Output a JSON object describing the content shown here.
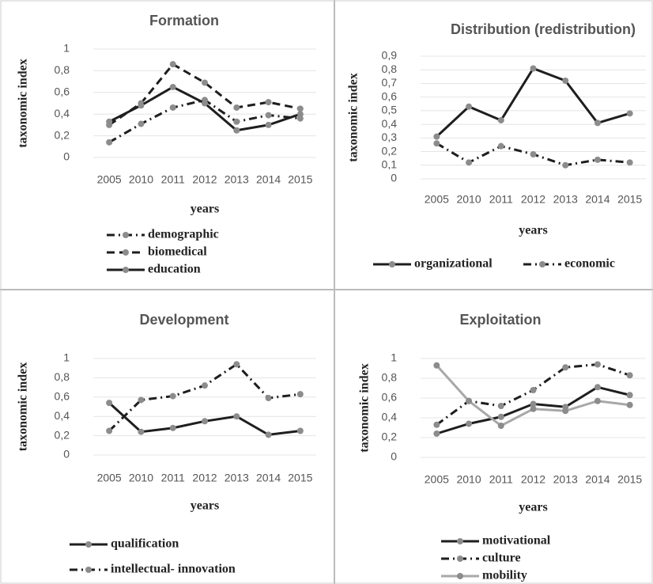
{
  "chart_data": [
    {
      "type": "line",
      "title": "Formation",
      "ylabel": "taxonomic index",
      "xlabel": "years",
      "categories": [
        "2005",
        "2010",
        "2011",
        "2012",
        "2013",
        "2014",
        "2015"
      ],
      "ylim": [
        0,
        1
      ],
      "yticks": [
        0,
        {
          "value": 0.2,
          "label": "0,2"
        },
        {
          "value": 0.4,
          "label": "0,4"
        },
        {
          "value": 0.6,
          "label": "0,6"
        },
        {
          "value": 0.8,
          "label": "0,8"
        },
        1
      ],
      "grid": true,
      "legend": "bottom",
      "series": [
        {
          "name": "demographic",
          "color": "#1e1e1e",
          "dash": "dashdot",
          "values": [
            0.14,
            0.31,
            0.46,
            0.53,
            0.33,
            0.39,
            0.36
          ]
        },
        {
          "name": "biomedical",
          "color": "#1e1e1e",
          "dash": "dashed",
          "values": [
            0.3,
            0.5,
            0.86,
            0.69,
            0.46,
            0.51,
            0.45
          ]
        },
        {
          "name": "education",
          "color": "#1e1e1e",
          "dash": "solid",
          "values": [
            0.33,
            0.48,
            0.65,
            0.5,
            0.25,
            0.3,
            0.4
          ]
        }
      ]
    },
    {
      "type": "line",
      "title": "Distribution (redistribution)",
      "ylabel": "taxonomic index",
      "xlabel": "years",
      "categories": [
        "2005",
        "2010",
        "2011",
        "2012",
        "2013",
        "2014",
        "2015"
      ],
      "ylim": [
        0,
        0.9
      ],
      "yticks": [
        0,
        {
          "value": 0.1,
          "label": "0,1"
        },
        {
          "value": 0.2,
          "label": "0,2"
        },
        {
          "value": 0.3,
          "label": "0,3"
        },
        {
          "value": 0.4,
          "label": "0,4"
        },
        {
          "value": 0.5,
          "label": "0,5"
        },
        {
          "value": 0.6,
          "label": "0,6"
        },
        {
          "value": 0.7,
          "label": "0,7"
        },
        {
          "value": 0.8,
          "label": "0,8"
        },
        {
          "value": 0.9,
          "label": "0,9"
        }
      ],
      "grid": true,
      "legend": "bottom",
      "series": [
        {
          "name": "organizational",
          "color": "#1e1e1e",
          "dash": "solid",
          "values": [
            0.31,
            0.53,
            0.43,
            0.81,
            0.72,
            0.41,
            0.48
          ]
        },
        {
          "name": "economic",
          "color": "#1e1e1e",
          "dash": "dashdot",
          "values": [
            0.26,
            0.12,
            0.24,
            0.18,
            0.1,
            0.14,
            0.12
          ]
        }
      ]
    },
    {
      "type": "line",
      "title": "Development",
      "ylabel": "taxonomic index",
      "xlabel": "years",
      "categories": [
        "2005",
        "2010",
        "2011",
        "2012",
        "2013",
        "2014",
        "2015"
      ],
      "ylim": [
        0,
        1
      ],
      "yticks": [
        0,
        {
          "value": 0.2,
          "label": "0,2"
        },
        {
          "value": 0.4,
          "label": "0,4"
        },
        {
          "value": 0.6,
          "label": "0,6"
        },
        {
          "value": 0.8,
          "label": "0,8"
        },
        1
      ],
      "grid": true,
      "legend": "bottom",
      "series": [
        {
          "name": "qualification",
          "color": "#1e1e1e",
          "dash": "solid",
          "values": [
            0.54,
            0.24,
            0.28,
            0.35,
            0.4,
            0.21,
            0.25
          ]
        },
        {
          "name": "intellectual- innovation",
          "color": "#1e1e1e",
          "dash": "dashdot",
          "values": [
            0.25,
            0.57,
            0.61,
            0.72,
            0.94,
            0.59,
            0.63
          ]
        }
      ]
    },
    {
      "type": "line",
      "title": "Exploitation",
      "ylabel": "taxonomic index",
      "xlabel": "years",
      "categories": [
        "2005",
        "2010",
        "2011",
        "2012",
        "2013",
        "2014",
        "2015"
      ],
      "ylim": [
        0,
        1
      ],
      "yticks": [
        0,
        {
          "value": 0.2,
          "label": "0,2"
        },
        {
          "value": 0.4,
          "label": "0,4"
        },
        {
          "value": 0.6,
          "label": "0,6"
        },
        {
          "value": 0.8,
          "label": "0,8"
        },
        1
      ],
      "grid": true,
      "legend": "bottom",
      "series": [
        {
          "name": "motivational",
          "color": "#1e1e1e",
          "dash": "solid",
          "values": [
            0.24,
            0.34,
            0.41,
            0.54,
            0.51,
            0.71,
            0.63
          ]
        },
        {
          "name": "culture",
          "color": "#1e1e1e",
          "dash": "dashdot",
          "values": [
            0.33,
            0.57,
            0.52,
            0.68,
            0.91,
            0.94,
            0.83
          ]
        },
        {
          "name": "mobility",
          "color": "#a8a8a8",
          "dash": "solid",
          "values": [
            0.93,
            0.57,
            0.32,
            0.49,
            0.47,
            0.57,
            0.53
          ]
        }
      ]
    }
  ]
}
